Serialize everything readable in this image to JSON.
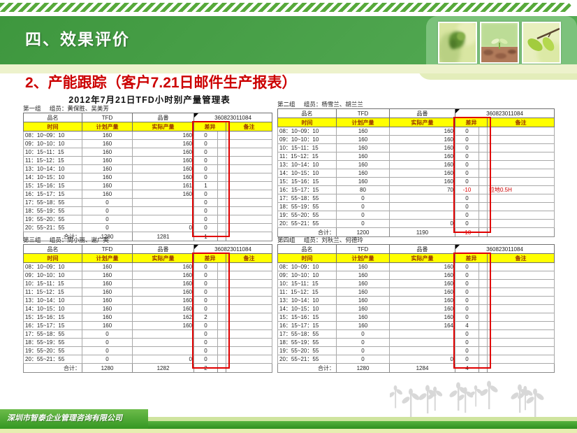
{
  "slide": {
    "title": "四、效果评价",
    "subtitle": "2、产能跟踪（客户7.21日邮件生产报表）",
    "footer_company": "深圳市智泰企业管理咨询有限公司",
    "colors": {
      "header_green": "#459e45",
      "panel_green": "#7cc27c",
      "pale_band": "#edf2cc",
      "subtitle_red": "#cc0000",
      "table_header_yellow": "#ffff00",
      "table_header_text": "#993300",
      "annotation_red": "#e00000",
      "footer_green": "#3f9e28"
    },
    "photos": [
      "green-buds-photo",
      "sprout-in-soil-photo",
      "leaves-on-branch-photo"
    ]
  },
  "report": {
    "excel_title": "2012年7月21日TFD小时别产量管理表",
    "part_no": "360823011084",
    "header": {
      "name": "品名",
      "model": "TFD",
      "part": "品番",
      "time": "时间",
      "plan": "计划产量",
      "actual": "实际产量",
      "diff": "差异",
      "note": "备注",
      "total": "合计："
    },
    "times": [
      "08：10~09：10",
      "09：10~10：10",
      "10：15~11：15",
      "11：15~12：15",
      "13：10~14：10",
      "14：10~15：10",
      "15：15~16：15",
      "16：15~17：15",
      "17：55~18：55",
      "18：55~19：55",
      "19：55~20：55",
      "20：55~21：55"
    ],
    "tables": [
      {
        "group": "第一组",
        "members": "组员：黄保胜、吴美芳",
        "plan": [
          "160",
          "160",
          "160",
          "160",
          "160",
          "160",
          "160",
          "160",
          "0",
          "0",
          "0",
          "0"
        ],
        "actual": [
          "160",
          "160",
          "160",
          "160",
          "160",
          "160",
          "161",
          "160",
          "",
          "",
          "",
          "0"
        ],
        "diff": [
          "0",
          "0",
          "0",
          "0",
          "0",
          "0",
          "1",
          "0",
          "0",
          "0",
          "0",
          "0"
        ],
        "note": [
          "",
          "",
          "",
          "",
          "",
          "",
          "",
          "",
          "",
          "",
          "",
          ""
        ],
        "total_plan": "1280",
        "total_actual": "1281",
        "total_diff": "1"
      },
      {
        "group": "第二组",
        "members": "组员：杨雪兰、胡兰兰",
        "plan": [
          "160",
          "160",
          "160",
          "160",
          "160",
          "160",
          "160",
          "80",
          "0",
          "0",
          "0",
          "0"
        ],
        "actual": [
          "160",
          "160",
          "160",
          "160",
          "160",
          "160",
          "160",
          "70",
          "",
          "",
          "",
          "0"
        ],
        "diff": [
          "0",
          "0",
          "0",
          "0",
          "0",
          "0",
          "0",
          "-10",
          "0",
          "0",
          "0",
          "0"
        ],
        "note": [
          "",
          "",
          "",
          "",
          "",
          "",
          "",
          "拉地0.5H",
          "",
          "",
          "",
          ""
        ],
        "total_plan": "1200",
        "total_actual": "1190",
        "total_diff": "-10"
      },
      {
        "group": "第三组",
        "members": "组员：周小丽、谢广英",
        "plan": [
          "160",
          "160",
          "160",
          "160",
          "160",
          "160",
          "160",
          "160",
          "0",
          "0",
          "0",
          "0"
        ],
        "actual": [
          "160",
          "160",
          "160",
          "160",
          "160",
          "160",
          "162",
          "160",
          "",
          "",
          "",
          "0"
        ],
        "diff": [
          "0",
          "0",
          "0",
          "0",
          "0",
          "0",
          "2",
          "0",
          "0",
          "0",
          "0",
          "0"
        ],
        "note": [
          "",
          "",
          "",
          "",
          "",
          "",
          "",
          "",
          "",
          "",
          "",
          ""
        ],
        "total_plan": "1280",
        "total_actual": "1282",
        "total_diff": "2"
      },
      {
        "group": "第四组",
        "members": "组员：刘秋兰、何德玲",
        "plan": [
          "160",
          "160",
          "160",
          "160",
          "160",
          "160",
          "160",
          "160",
          "0",
          "0",
          "0",
          "0"
        ],
        "actual": [
          "160",
          "160",
          "160",
          "160",
          "160",
          "160",
          "160",
          "164",
          "",
          "",
          "",
          "0"
        ],
        "diff": [
          "0",
          "0",
          "0",
          "0",
          "0",
          "0",
          "0",
          "4",
          "0",
          "0",
          "0",
          "0"
        ],
        "note": [
          "",
          "",
          "",
          "",
          "",
          "",
          "",
          "",
          "",
          "",
          "",
          ""
        ],
        "total_plan": "1280",
        "total_actual": "1284",
        "total_diff": "4"
      }
    ]
  }
}
